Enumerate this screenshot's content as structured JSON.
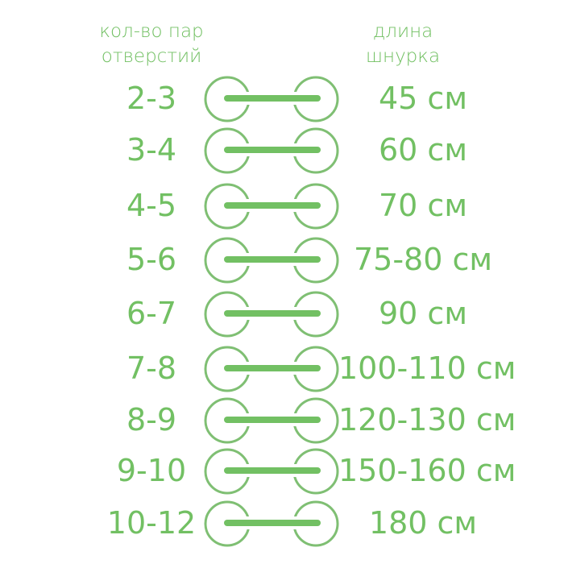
{
  "header": {
    "left": [
      "кол-во пар",
      "отверстий"
    ],
    "right": [
      "длина",
      "шнурка"
    ]
  },
  "colors": {
    "accent": "#72c063",
    "circle": "#7fbf73"
  },
  "icon": "shoelace-eyelets-icon",
  "rows": [
    {
      "holes": "2-3",
      "length": "45 см"
    },
    {
      "holes": "3-4",
      "length": "60 см"
    },
    {
      "holes": "4-5",
      "length": "70 см"
    },
    {
      "holes": "5-6",
      "length": "75-80 см"
    },
    {
      "holes": "6-7",
      "length": "90 см"
    },
    {
      "holes": "7-8",
      "length": "100-110 см"
    },
    {
      "holes": "8-9",
      "length": "120-130 см"
    },
    {
      "holes": "9-10",
      "length": "150-160 см"
    },
    {
      "holes": "10-12",
      "length": "180 см"
    }
  ]
}
